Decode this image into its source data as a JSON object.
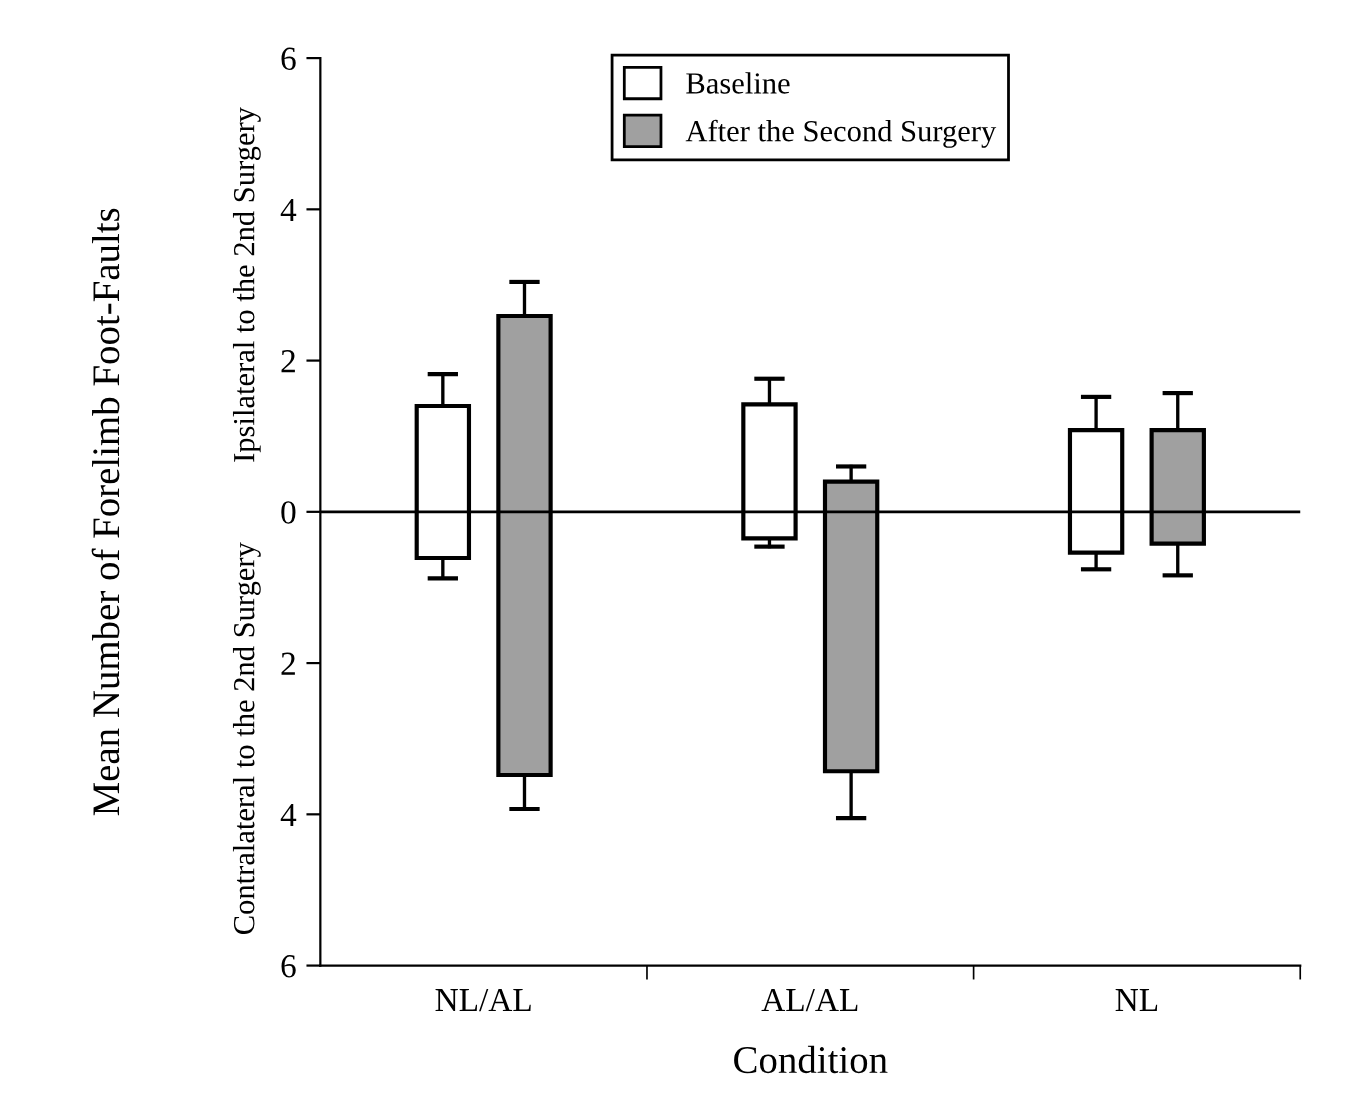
{
  "chart_data": {
    "type": "bar",
    "xlabel": "Condition",
    "ylabel": "Mean Number of Forelimb Foot-Faults",
    "categories": [
      "NL/AL",
      "AL/AL",
      "NL"
    ],
    "series": [
      {
        "name": "Baseline",
        "color": "#ffffff",
        "base": [
          -0.61,
          -0.35,
          -0.54
        ],
        "values": [
          2.01,
          1.77,
          1.62
        ],
        "errors": [
          [
            -0.88,
            1.82
          ],
          [
            -0.46,
            1.76
          ],
          [
            -0.76,
            1.52
          ]
        ]
      },
      {
        "name": "After the Second Surgery",
        "color": "#a0a0a0",
        "base": [
          -3.48,
          -3.43,
          -0.42
        ],
        "values": [
          6.07,
          3.83,
          1.5
        ],
        "errors": [
          [
            -3.93,
            3.04
          ],
          [
            -4.05,
            0.6
          ],
          [
            -0.84,
            1.57
          ]
        ]
      }
    ],
    "ylim": [
      -6,
      6
    ],
    "yticks": [
      {
        "value": -6,
        "label": "6"
      },
      {
        "value": -4,
        "label": "4"
      },
      {
        "value": -2,
        "label": "2"
      },
      0,
      2,
      4,
      6
    ],
    "ref_lines": [
      {
        "axis": "y",
        "value": 0,
        "color": "#000000"
      }
    ],
    "annotations": [
      "Ipsilateral to the 2nd Surgery",
      "Contralateral to the 2nd Surgery"
    ],
    "legend": "top",
    "grid": false
  }
}
